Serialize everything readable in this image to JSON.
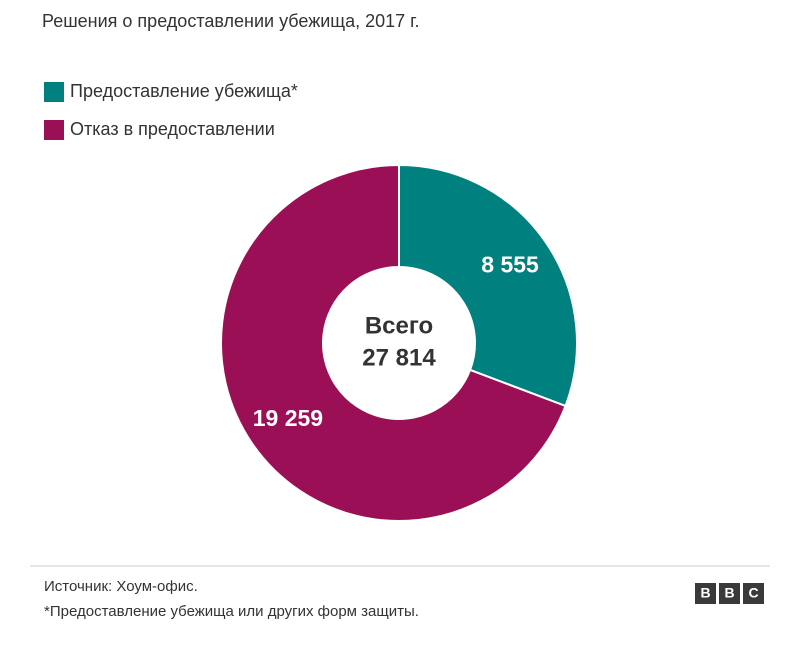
{
  "chart_data": {
    "type": "donut",
    "title": "Решения о предоставлении убежища, 2017 г.",
    "categories": [
      "Предоставление убежища*",
      "Отказ в предоставлении"
    ],
    "values": [
      8555,
      19259
    ],
    "value_labels": [
      "8 555",
      "19 259"
    ],
    "colors": [
      "#00807f",
      "#9b0f56"
    ],
    "center_text": "Всего",
    "total": {
      "value": 27814,
      "label": "27 814"
    }
  },
  "footer": {
    "source": "Источник: Хоум-офис.",
    "note": "*Предоставление убежища или других форм защиты.",
    "logo": [
      "B",
      "B",
      "C"
    ]
  }
}
